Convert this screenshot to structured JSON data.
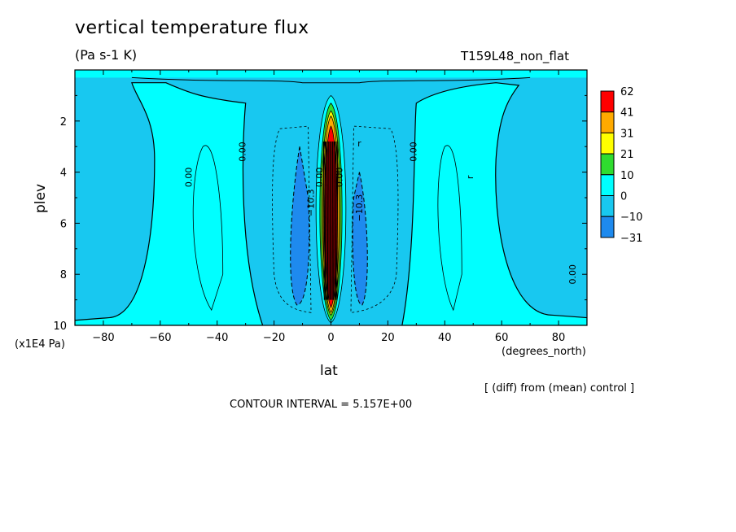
{
  "title": "vertical temperature flux",
  "units": "(Pa s-1 K)",
  "experiment": "T159L48_non_flat",
  "note": "[ (diff) from (mean) control ]",
  "contour_interval": "CONTOUR INTERVAL = 5.157E+00",
  "colors": {
    "c_below_m31": "#1f4fe0",
    "c_m31_m10": "#1e8aee",
    "c_m10_0": "#18c8f0",
    "c_0_10": "#00ffff",
    "c_10_21": "#2fdc2f",
    "c_21_31": "#ffff00",
    "c_31_41": "#ffaa00",
    "c_41_62": "#ff0000"
  },
  "chart_data": {
    "type": "contour",
    "title": "vertical temperature flux",
    "subtitle": "(Pa s-1 K)",
    "xlabel": "lat",
    "xlabel_units": "(degrees_north)",
    "ylabel": "plev",
    "ylabel_units": "(x1E4 Pa)",
    "xlim": [
      -90,
      90
    ],
    "ylim": [
      10,
      0
    ],
    "x_ticks": [
      -80,
      -60,
      -40,
      -20,
      0,
      20,
      40,
      60,
      80
    ],
    "x_tick_labels": [
      "-80",
      "-60",
      "-40",
      "-20",
      "0",
      "20",
      "40",
      "60",
      "80"
    ],
    "y_ticks": [
      2,
      4,
      6,
      8,
      10
    ],
    "y_tick_labels": [
      "2",
      "4",
      "6",
      "8",
      "10"
    ],
    "colorbar_levels": [
      "62",
      "41",
      "31",
      "21",
      "10",
      "0",
      "-10",
      "-31"
    ],
    "contour_labels": [
      "0.00",
      "0.00",
      "0.00",
      "0.00",
      "0.00",
      "-10.3",
      "-10.3",
      "0.00",
      "r"
    ],
    "grid": false
  }
}
